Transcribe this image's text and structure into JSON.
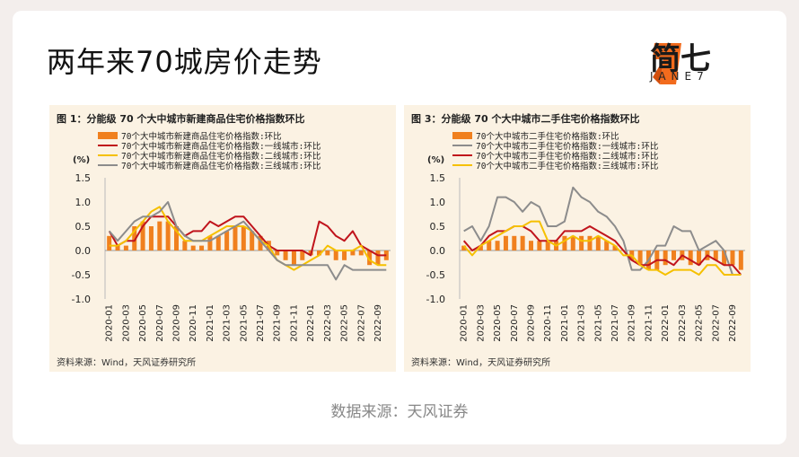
{
  "header": {
    "title": "两年来70城房价走势",
    "logo_text": "简七",
    "logo_sub": "JANE7"
  },
  "footer": {
    "text": "数据来源：天风证券"
  },
  "colors": {
    "bar": "#f0801e",
    "tier1": "#c0141c",
    "tier2": "#f5c000",
    "tier3": "#8c8c8c",
    "panel_bg": "#fbf2e3"
  },
  "chart_data": [
    {
      "type": "bar",
      "title": "图 1：分能级 70 个大中城市新建商品住宅价格指数环比",
      "source": "资料来源：Wind，天风证券研究所",
      "ylabel": "(%)",
      "ylim": [
        -1.0,
        1.5
      ],
      "yticks": [
        "1.5",
        "1.0",
        "0.5",
        "0.0",
        "-0.5",
        "-1.0"
      ],
      "x": [
        "2020-01",
        "2020-02",
        "2020-03",
        "2020-04",
        "2020-05",
        "2020-06",
        "2020-07",
        "2020-08",
        "2020-09",
        "2020-10",
        "2020-11",
        "2020-12",
        "2021-01",
        "2021-02",
        "2021-03",
        "2021-04",
        "2021-05",
        "2021-06",
        "2021-07",
        "2021-08",
        "2021-09",
        "2021-10",
        "2021-11",
        "2021-12",
        "2022-01",
        "2022-02",
        "2022-03",
        "2022-04",
        "2022-05",
        "2022-06",
        "2022-07",
        "2022-08",
        "2022-09",
        "2022-10"
      ],
      "xtick_labels": [
        "2020-01",
        "2020-03",
        "2020-05",
        "2020-07",
        "2020-09",
        "2020-11",
        "2021-01",
        "2021-03",
        "2021-05",
        "2021-07",
        "2021-09",
        "2021-11",
        "2022-01",
        "2022-03",
        "2022-05",
        "2022-07",
        "2022-09"
      ],
      "series": [
        {
          "name": "70个大中城市新建商品住宅价格指数:环比",
          "kind": "bar",
          "color": "#f0801e",
          "values": [
            0.3,
            0.1,
            0.1,
            0.5,
            0.6,
            0.5,
            0.6,
            0.6,
            0.5,
            0.2,
            0.1,
            0.1,
            0.3,
            0.3,
            0.4,
            0.5,
            0.5,
            0.4,
            0.3,
            0.2,
            -0.1,
            -0.2,
            -0.3,
            -0.2,
            -0.1,
            -0.1,
            -0.1,
            -0.2,
            -0.2,
            -0.1,
            -0.1,
            -0.3,
            -0.3,
            -0.2
          ]
        },
        {
          "name": "70个大中城市新建商品住宅价格指数:一线城市:环比",
          "kind": "line",
          "color": "#c0141c",
          "values": [
            0.4,
            0.1,
            0.2,
            0.2,
            0.5,
            0.7,
            0.7,
            0.7,
            0.5,
            0.3,
            0.4,
            0.4,
            0.6,
            0.5,
            0.6,
            0.7,
            0.7,
            0.5,
            0.3,
            0.1,
            0.0,
            0.0,
            0.0,
            0.0,
            -0.1,
            0.6,
            0.5,
            0.3,
            0.2,
            0.4,
            0.1,
            0.0,
            -0.1,
            -0.1
          ]
        },
        {
          "name": "70个大中城市新建商品住宅价格指数:二线城市:环比",
          "kind": "line",
          "color": "#f5c000",
          "values": [
            0.1,
            0.1,
            0.2,
            0.4,
            0.6,
            0.8,
            0.9,
            0.6,
            0.4,
            0.2,
            0.2,
            0.2,
            0.3,
            0.4,
            0.5,
            0.5,
            0.5,
            0.4,
            0.2,
            0.1,
            -0.2,
            -0.3,
            -0.4,
            -0.3,
            -0.2,
            -0.1,
            0.1,
            0.0,
            0.0,
            0.0,
            0.1,
            -0.2,
            -0.3,
            -0.3
          ]
        },
        {
          "name": "70个大中城市新建商品住宅价格指数:三线城市:环比",
          "kind": "line",
          "color": "#8c8c8c",
          "values": [
            0.4,
            0.2,
            0.4,
            0.6,
            0.7,
            0.7,
            0.8,
            1.0,
            0.5,
            0.3,
            0.2,
            0.2,
            0.2,
            0.3,
            0.4,
            0.5,
            0.6,
            0.4,
            0.2,
            0.0,
            -0.2,
            -0.3,
            -0.3,
            -0.3,
            -0.3,
            -0.3,
            -0.3,
            -0.6,
            -0.3,
            -0.4,
            -0.4,
            -0.4,
            -0.4,
            -0.4
          ]
        }
      ]
    },
    {
      "type": "bar",
      "title": "图 3：分能级 70 个大中城市二手住宅价格指数环比",
      "source": "资料来源：Wind，天风证券研究所",
      "ylabel": "(%)",
      "ylim": [
        -1.0,
        1.5
      ],
      "yticks": [
        "1.5",
        "1.0",
        "0.5",
        "0.0",
        "-0.5",
        "-1.0"
      ],
      "x": [
        "2020-01",
        "2020-02",
        "2020-03",
        "2020-04",
        "2020-05",
        "2020-06",
        "2020-07",
        "2020-08",
        "2020-09",
        "2020-10",
        "2020-11",
        "2020-12",
        "2021-01",
        "2021-02",
        "2021-03",
        "2021-04",
        "2021-05",
        "2021-06",
        "2021-07",
        "2021-08",
        "2021-09",
        "2021-10",
        "2021-11",
        "2021-12",
        "2022-01",
        "2022-02",
        "2022-03",
        "2022-04",
        "2022-05",
        "2022-06",
        "2022-07",
        "2022-08",
        "2022-09",
        "2022-10"
      ],
      "xtick_labels": [
        "2020-01",
        "2020-03",
        "2020-05",
        "2020-07",
        "2020-09",
        "2020-11",
        "2021-01",
        "2021-03",
        "2021-05",
        "2021-07",
        "2021-09",
        "2021-11",
        "2022-01",
        "2022-03",
        "2022-05",
        "2022-07",
        "2022-09"
      ],
      "series": [
        {
          "name": "70个大中城市二手住宅价格指数:环比",
          "kind": "bar",
          "color": "#f0801e",
          "values": [
            0.1,
            0.0,
            0.1,
            0.2,
            0.2,
            0.3,
            0.3,
            0.3,
            0.2,
            0.2,
            0.2,
            0.2,
            0.3,
            0.3,
            0.3,
            0.3,
            0.3,
            0.2,
            0.1,
            0.0,
            -0.2,
            -0.3,
            -0.4,
            -0.4,
            -0.3,
            -0.2,
            -0.2,
            -0.3,
            -0.3,
            -0.2,
            -0.2,
            -0.3,
            -0.3,
            -0.4
          ]
        },
        {
          "name": "70个大中城市二手住宅价格指数:一线城市:环比",
          "kind": "line",
          "color": "#8c8c8c",
          "values": [
            0.4,
            0.5,
            0.2,
            0.5,
            1.1,
            1.1,
            1.0,
            0.8,
            1.0,
            0.9,
            0.5,
            0.5,
            0.6,
            1.3,
            1.1,
            1.0,
            0.8,
            0.7,
            0.5,
            0.2,
            -0.4,
            -0.4,
            -0.2,
            0.1,
            0.1,
            0.5,
            0.4,
            0.4,
            0.0,
            0.1,
            0.2,
            0.0,
            -0.5,
            -0.5
          ]
        },
        {
          "name": "70个大中城市二手住宅价格指数:二线城市:环比",
          "kind": "line",
          "color": "#c0141c",
          "values": [
            0.2,
            0.0,
            0.1,
            0.3,
            0.4,
            0.4,
            0.5,
            0.5,
            0.4,
            0.2,
            0.2,
            0.2,
            0.4,
            0.4,
            0.4,
            0.5,
            0.4,
            0.3,
            0.2,
            0.0,
            -0.2,
            -0.3,
            -0.3,
            -0.2,
            -0.2,
            -0.3,
            -0.1,
            -0.2,
            -0.3,
            -0.1,
            -0.2,
            -0.3,
            -0.3,
            -0.5
          ]
        },
        {
          "name": "70个大中城市二手住宅价格指数:三线城市:环比",
          "kind": "line",
          "color": "#f5c000",
          "values": [
            0.1,
            -0.1,
            0.1,
            0.2,
            0.3,
            0.4,
            0.5,
            0.5,
            0.6,
            0.6,
            0.2,
            0.1,
            0.2,
            0.3,
            0.2,
            0.2,
            0.3,
            0.2,
            0.1,
            -0.1,
            -0.1,
            -0.3,
            -0.4,
            -0.4,
            -0.5,
            -0.4,
            -0.4,
            -0.4,
            -0.5,
            -0.3,
            -0.3,
            -0.5,
            -0.5,
            -0.5
          ]
        }
      ]
    }
  ]
}
